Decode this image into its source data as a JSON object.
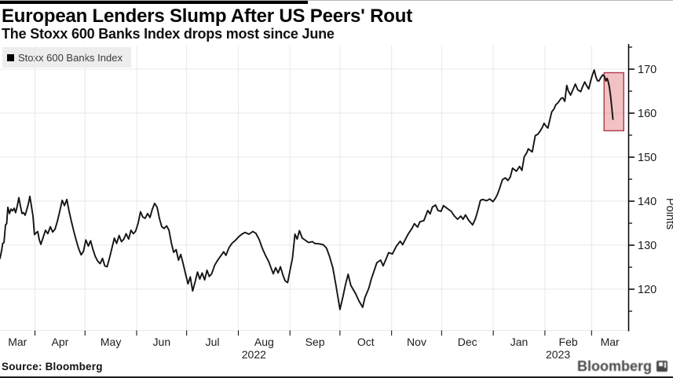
{
  "header": {
    "title": "European Lenders Slump After US Peers' Rout",
    "subtitle": "The Stoxx 600 Banks Index drops most since June"
  },
  "legend": {
    "label": "Stoxx 600 Banks Index",
    "marker_color": "#000000"
  },
  "source": "Source: Bloomberg",
  "watermark": {
    "text": "Bloomberg"
  },
  "colors": {
    "line": "#141414",
    "grid": "#e8e8e8",
    "axis": "#000000",
    "tick_text": "#1c1c1c",
    "highlight_fill": "#d95c62",
    "highlight_stroke": "#b03a48"
  },
  "chart_data": {
    "type": "line",
    "title": "European Lenders Slump After US Peers' Rout",
    "subtitle": "The Stoxx 600 Banks Index drops most since June",
    "ylabel": "Points",
    "ylim": [
      110.5,
      175.5
    ],
    "grid": true,
    "legend_position": "top-left",
    "x_unit": "days since 2022-03-11",
    "x_range_days": [
      0,
      377
    ],
    "x_axis": {
      "month_labels": [
        "Mar",
        "Apr",
        "May",
        "Jun",
        "Jul",
        "Aug",
        "Sep",
        "Oct",
        "Nov",
        "Dec",
        "Jan",
        "Feb",
        "Mar"
      ],
      "month_start_days": [
        21,
        51,
        82,
        112,
        143,
        174,
        204,
        235,
        265,
        296,
        327,
        355
      ],
      "year_labels": [
        {
          "text": "2022",
          "month_index": 5
        },
        {
          "text": "2023",
          "month_index": 11
        }
      ]
    },
    "y_axis": {
      "major_ticks": [
        170,
        160,
        150,
        140,
        130,
        120
      ],
      "minor_ticks": [
        175,
        165,
        155,
        145,
        135,
        125,
        115
      ]
    },
    "highlight_box": {
      "x0_day": 362.5,
      "x1_day": 374.3,
      "v0": 156.0,
      "v1": 169.2,
      "fill_opacity": 0.38
    },
    "series": [
      {
        "name": "Stoxx 600 Banks Index",
        "points": [
          [
            0,
            127
          ],
          [
            1,
            128.8
          ],
          [
            1.6,
            130.4
          ],
          [
            2.4,
            130.6
          ],
          [
            3.3,
            134.6
          ],
          [
            4,
            134.9
          ],
          [
            4.7,
            138.6
          ],
          [
            5.7,
            137.2
          ],
          [
            6.6,
            138.2
          ],
          [
            7.5,
            137.8
          ],
          [
            8.5,
            138.4
          ],
          [
            9.4,
            137.4
          ],
          [
            10.4,
            139
          ],
          [
            11.3,
            140.8
          ],
          [
            12.2,
            139
          ],
          [
            13.2,
            137.2
          ],
          [
            14.1,
            137.4
          ],
          [
            15.1,
            136.8
          ],
          [
            16,
            138
          ],
          [
            17,
            139.4
          ],
          [
            17.9,
            141.1
          ],
          [
            18.9,
            138.8
          ],
          [
            19.8,
            136.6
          ],
          [
            20.7,
            132.4
          ],
          [
            21.7,
            132.8
          ],
          [
            22.6,
            133.1
          ],
          [
            23.6,
            131.2
          ],
          [
            24.5,
            130.2
          ],
          [
            25.9,
            131.8
          ],
          [
            27.3,
            133.4
          ],
          [
            28.7,
            132.6
          ],
          [
            30.2,
            134.2
          ],
          [
            31.6,
            133
          ],
          [
            33,
            133.6
          ],
          [
            34.4,
            135.4
          ],
          [
            35.9,
            137.8
          ],
          [
            37.3,
            140.2
          ],
          [
            38.7,
            139
          ],
          [
            40.1,
            140.4
          ],
          [
            41.5,
            137.6
          ],
          [
            43,
            135.2
          ],
          [
            44.4,
            133
          ],
          [
            45.8,
            131
          ],
          [
            47.2,
            129.2
          ],
          [
            48.7,
            127.8
          ],
          [
            50.1,
            128.6
          ],
          [
            51.5,
            131.2
          ],
          [
            53,
            129.8
          ],
          [
            54.4,
            131
          ],
          [
            55.8,
            129
          ],
          [
            57.2,
            127.4
          ],
          [
            58.6,
            126.4
          ],
          [
            60.1,
            125.8
          ],
          [
            61.5,
            127
          ],
          [
            62.9,
            125.3
          ],
          [
            64.3,
            125.1
          ],
          [
            65.8,
            127.2
          ],
          [
            67.2,
            129.4
          ],
          [
            68.6,
            131.6
          ],
          [
            70,
            130.4
          ],
          [
            71.5,
            132.2
          ],
          [
            72.9,
            130.8
          ],
          [
            74.3,
            131.4
          ],
          [
            75.7,
            132.6
          ],
          [
            77.2,
            131.4
          ],
          [
            78.6,
            133.4
          ],
          [
            80,
            132.6
          ],
          [
            81.4,
            133.2
          ],
          [
            82.9,
            135
          ],
          [
            84.3,
            137.6
          ],
          [
            85.7,
            136.4
          ],
          [
            87.1,
            136.1
          ],
          [
            88.6,
            137.2
          ],
          [
            90,
            136.3
          ],
          [
            91.4,
            138.2
          ],
          [
            92.8,
            139.5
          ],
          [
            94.3,
            138.6
          ],
          [
            95.7,
            136
          ],
          [
            97.1,
            134.2
          ],
          [
            98.5,
            133.8
          ],
          [
            100,
            134.4
          ],
          [
            101.4,
            133.4
          ],
          [
            102.8,
            130.6
          ],
          [
            104.2,
            128.4
          ],
          [
            105.7,
            129
          ],
          [
            107.1,
            126.6
          ],
          [
            108.5,
            127.9
          ],
          [
            109.9,
            125.8
          ],
          [
            111.4,
            123.4
          ],
          [
            112.8,
            121.2
          ],
          [
            114.2,
            122.8
          ],
          [
            115.6,
            119.6
          ],
          [
            117.1,
            121.7
          ],
          [
            118.5,
            123.9
          ],
          [
            119.9,
            122.3
          ],
          [
            121.3,
            123.7
          ],
          [
            122.8,
            122.1
          ],
          [
            124.2,
            124.3
          ],
          [
            125.6,
            122.9
          ],
          [
            127,
            123.5
          ],
          [
            128.9,
            125.5
          ],
          [
            130.8,
            126.7
          ],
          [
            132.7,
            127.7
          ],
          [
            134.2,
            128.5
          ],
          [
            135.6,
            127.7
          ],
          [
            137.5,
            129.5
          ],
          [
            139.4,
            130.5
          ],
          [
            141.3,
            131.1
          ],
          [
            143.2,
            131.9
          ],
          [
            145.1,
            132.5
          ],
          [
            147,
            132.9
          ],
          [
            149.4,
            132.5
          ],
          [
            151.7,
            133.1
          ],
          [
            153.6,
            132.7
          ],
          [
            155.5,
            131.3
          ],
          [
            157.4,
            129.3
          ],
          [
            159.3,
            127.7
          ],
          [
            161.2,
            126.3
          ],
          [
            162.6,
            124.9
          ],
          [
            164,
            123.5
          ],
          [
            165.4,
            124.9
          ],
          [
            166.9,
            123.7
          ],
          [
            168.3,
            125.1
          ],
          [
            169.7,
            123.3
          ],
          [
            171.1,
            121.9
          ],
          [
            172.6,
            121.5
          ],
          [
            174,
            124.2
          ],
          [
            175.5,
            127
          ],
          [
            177,
            132.5
          ],
          [
            178.3,
            131.4
          ],
          [
            179.7,
            133.3
          ],
          [
            181.4,
            131.6
          ],
          [
            183.7,
            131
          ],
          [
            185.1,
            130.6
          ],
          [
            187.5,
            130.8
          ],
          [
            188.9,
            130.4
          ],
          [
            191.7,
            130.3
          ],
          [
            194,
            130.1
          ],
          [
            196,
            129.3
          ],
          [
            197.8,
            127.4
          ],
          [
            199.7,
            124.9
          ],
          [
            201.6,
            120.9
          ],
          [
            204,
            115.4
          ],
          [
            205.8,
            118.3
          ],
          [
            207.3,
            121
          ],
          [
            208.9,
            123.4
          ],
          [
            210.5,
            120.9
          ],
          [
            212,
            119.9
          ],
          [
            213.4,
            119
          ],
          [
            215.3,
            117.4
          ],
          [
            217.6,
            115.9
          ],
          [
            219,
            118.1
          ],
          [
            220,
            119
          ],
          [
            221.4,
            120.3
          ],
          [
            222.8,
            122.3
          ],
          [
            224.7,
            124.4
          ],
          [
            226.1,
            126
          ],
          [
            228.4,
            126.6
          ],
          [
            229.9,
            125.3
          ],
          [
            231.7,
            126.9
          ],
          [
            233.2,
            128.3
          ],
          [
            235.5,
            128
          ],
          [
            237.9,
            129.8
          ],
          [
            240.2,
            130.9
          ],
          [
            241.6,
            130.1
          ],
          [
            243.5,
            131.5
          ],
          [
            244.9,
            132.5
          ],
          [
            247.3,
            133.9
          ],
          [
            248.7,
            134.9
          ],
          [
            250.6,
            134.1
          ],
          [
            252,
            135.3
          ],
          [
            254.4,
            135.6
          ],
          [
            256.7,
            137.9
          ],
          [
            258.1,
            137.1
          ],
          [
            259.5,
            138.7
          ],
          [
            261.4,
            139.1
          ],
          [
            262.8,
            137.9
          ],
          [
            264.7,
            137.7
          ],
          [
            266.1,
            139
          ],
          [
            268.5,
            138.3
          ],
          [
            270.8,
            137.7
          ],
          [
            272.7,
            136.6
          ],
          [
            274.6,
            135.9
          ],
          [
            276.5,
            136.6
          ],
          [
            277.9,
            135.9
          ],
          [
            279.3,
            136.9
          ],
          [
            281.2,
            135.7
          ],
          [
            283.6,
            134.6
          ],
          [
            285.4,
            136.1
          ],
          [
            286.9,
            138.1
          ],
          [
            288.3,
            140.2
          ],
          [
            289.7,
            140.4
          ],
          [
            292,
            140.1
          ],
          [
            293.9,
            140.5
          ],
          [
            295.8,
            139.9
          ],
          [
            297.2,
            140.6
          ],
          [
            298.6,
            141.6
          ],
          [
            300,
            143.1
          ],
          [
            301.5,
            144.9
          ],
          [
            303.3,
            145.3
          ],
          [
            304.8,
            144.7
          ],
          [
            306.2,
            145.5
          ],
          [
            307.6,
            147.5
          ],
          [
            309.9,
            146.8
          ],
          [
            311.8,
            147.9
          ],
          [
            313.2,
            147
          ],
          [
            314.6,
            150.1
          ],
          [
            316.1,
            151
          ],
          [
            317,
            151.9
          ],
          [
            318.4,
            151.5
          ],
          [
            319.4,
            151.2
          ],
          [
            321.2,
            154.9
          ],
          [
            322.7,
            155.2
          ],
          [
            324.1,
            155.9
          ],
          [
            325.5,
            156.8
          ],
          [
            326.5,
            157.7
          ],
          [
            327.8,
            157
          ],
          [
            328.8,
            156.6
          ],
          [
            330.2,
            158.9
          ],
          [
            331.1,
            160.3
          ],
          [
            332.5,
            161
          ],
          [
            333.5,
            161.9
          ],
          [
            334.9,
            162.4
          ],
          [
            335.8,
            162.9
          ],
          [
            336.8,
            163.4
          ],
          [
            337.7,
            163.5
          ],
          [
            338.9,
            162.7
          ],
          [
            340.1,
            166.3
          ],
          [
            341,
            165.1
          ],
          [
            342.4,
            164.1
          ],
          [
            343.8,
            165.3
          ],
          [
            345.3,
            166.6
          ],
          [
            346.7,
            165.3
          ],
          [
            348.5,
            164.9
          ],
          [
            349.5,
            165.9
          ],
          [
            350.9,
            167.1
          ],
          [
            352.1,
            166.2
          ],
          [
            353.3,
            165.5
          ],
          [
            354.7,
            167.7
          ],
          [
            355.6,
            168.8
          ],
          [
            356.6,
            169.8
          ],
          [
            357.5,
            168.4
          ],
          [
            358.5,
            167.4
          ],
          [
            359.4,
            167.3
          ],
          [
            360.6,
            168.1
          ],
          [
            361.7,
            168.7
          ],
          [
            362.7,
            168.4
          ],
          [
            363.6,
            167.3
          ],
          [
            364.3,
            167.9
          ],
          [
            365,
            167.2
          ],
          [
            365.7,
            165.9
          ],
          [
            366.4,
            163.9
          ],
          [
            367.1,
            161.4
          ],
          [
            367.8,
            158.6
          ]
        ]
      }
    ]
  }
}
